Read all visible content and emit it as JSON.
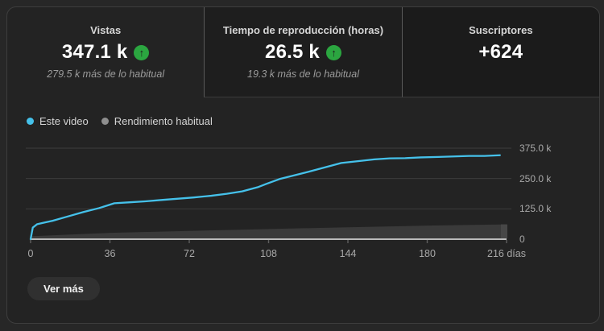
{
  "panel": {
    "description": "Analytics card with metric tabs, performance line chart and see-more button"
  },
  "tabs": [
    {
      "label": "Vistas",
      "value": "347.1 k",
      "trend": "up",
      "delta": "279.5 k más de lo habitual",
      "selected": true
    },
    {
      "label": "Tiempo de reproducción (horas)",
      "value": "26.5 k",
      "trend": "up",
      "delta": "19.3 k más de lo habitual",
      "selected": false
    },
    {
      "label": "Suscriptores",
      "value": "+624",
      "trend": null,
      "delta": "",
      "selected": false
    }
  ],
  "legend": {
    "items": [
      {
        "label": "Este video",
        "color": "#45c1ea"
      },
      {
        "label": "Rendimiento habitual",
        "color": "#8f8f8f"
      }
    ]
  },
  "button": {
    "label": "Ver más"
  },
  "colors": {
    "green_badge": "#2ba640",
    "badge_arrow": "#1e1e1e",
    "line_blue": "#45c1ea",
    "habitual_area": "#3a3a3a",
    "habitual_area_end": "#474747",
    "axis_line": "#ececec",
    "grid_line": "#3d3d3d",
    "tick_mark": "#5f5f5f",
    "card_bg": "#232323",
    "inactive_tab_bg": "#1e1e1e",
    "page_bg": "#272727"
  },
  "chart_data": {
    "type": "line",
    "title": "",
    "x_axis": {
      "max": 216,
      "ticks": [
        0,
        36,
        72,
        108,
        144,
        180,
        216
      ],
      "tick_labels": [
        "0",
        "36",
        "72",
        "108",
        "144",
        "180",
        "216 días"
      ],
      "unit": "días"
    },
    "y_axis": {
      "max": 375,
      "ticks": [
        0,
        125,
        250,
        375
      ],
      "tick_labels": [
        "0",
        "125.0 k",
        "250.0 k",
        "375.0 k"
      ],
      "unit": "k"
    },
    "grid": true,
    "legend_position": "top-left",
    "series": [
      {
        "name": "Este video",
        "type": "line",
        "color": "#45c1ea",
        "unit": "k",
        "points": [
          [
            0,
            0
          ],
          [
            1,
            48
          ],
          [
            3,
            62
          ],
          [
            6,
            68
          ],
          [
            10,
            76
          ],
          [
            17,
            94
          ],
          [
            24,
            112
          ],
          [
            31,
            128
          ],
          [
            38,
            148
          ],
          [
            45,
            152
          ],
          [
            52,
            156
          ],
          [
            60,
            162
          ],
          [
            67,
            167
          ],
          [
            74,
            172
          ],
          [
            82,
            179
          ],
          [
            89,
            187
          ],
          [
            96,
            197
          ],
          [
            103,
            214
          ],
          [
            107,
            228
          ],
          [
            113,
            248
          ],
          [
            120,
            264
          ],
          [
            127,
            280
          ],
          [
            134,
            297
          ],
          [
            141,
            314
          ],
          [
            149,
            322
          ],
          [
            156,
            329
          ],
          [
            163,
            333
          ],
          [
            170,
            334
          ],
          [
            177,
            337
          ],
          [
            185,
            339
          ],
          [
            192,
            341
          ],
          [
            199,
            343
          ],
          [
            206,
            343
          ],
          [
            213,
            346
          ]
        ]
      },
      {
        "name": "Rendimiento habitual",
        "type": "area",
        "color": "#3a3a3a",
        "unit": "k",
        "points": [
          [
            0,
            12
          ],
          [
            36,
            26
          ],
          [
            72,
            34
          ],
          [
            108,
            42
          ],
          [
            144,
            49
          ],
          [
            180,
            56
          ],
          [
            216,
            61
          ]
        ]
      }
    ]
  }
}
